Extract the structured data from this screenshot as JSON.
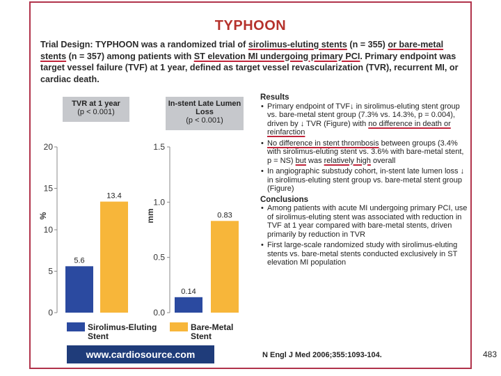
{
  "slide": {
    "title": "TYPHOON",
    "design": {
      "p1": "Trial Design: TYPHOON was a randomized trial of ",
      "u1": "sirolimus-eluting stents",
      "p2": " (n = 355) ",
      "u2": "or bare-metal stents",
      "p3": " (n = 357) among patients with ",
      "u3": "ST elevation MI undergoing primary PCI",
      "p4": ". Primary endpoint was target vessel failure (TVF) at 1 year, defined as target vessel revascularization (TVR), recurrent MI, or cardiac death."
    },
    "results": {
      "heading": "Results",
      "b1": "Primary endpoint of TVF↓ in sirolimus-eluting stent group vs. bare-metal stent group (7.3% vs. 14.3%, p = 0.004), driven by ↓ TVR (Figure) with ",
      "b1u": "no difference in death or reinfarction",
      "b2u": "No difference in stent thrombosis",
      "b2": " between groups (3.4% with sirolimus-eluting stent vs. 3.6% with bare-metal stent, p = NS) ",
      "b2u2": "but",
      "b2m": " was ",
      "b2u3": "relatively high",
      "b2e": " overall",
      "b3": "In angiographic substudy cohort, in-stent late lumen loss ↓ in sirolimus-eluting stent group vs. bare-metal stent group (Figure)"
    },
    "conclusions": {
      "heading": "Conclusions",
      "c1": "Among patients with acute MI undergoing primary PCI, use of sirolimus-eluting stent was associated with reduction in TVF at 1 year compared with bare-metal stents, driven primarily by reduction in TVR",
      "c2": "First large-scale randomized study with sirolimus-eluting stents vs. bare-metal stents conducted exclusively in ST elevation MI population"
    },
    "legend": {
      "series1": "Sirolimus-Eluting Stent",
      "series2": "Bare-Metal Stent"
    },
    "logo_text": "www.cardiosource.com",
    "citation": "N Engl J Med 2006;355:1093-104.",
    "page_number": "483",
    "colors": {
      "blue": "#2b4aa0",
      "orange": "#f7b63a",
      "accent": "#b5322c"
    }
  },
  "chart_data": [
    {
      "type": "bar",
      "title": "TVR at 1 year",
      "subtitle": "(p < 0.001)",
      "ylabel": "%",
      "ylim": [
        0,
        20
      ],
      "yticks": [
        0,
        5,
        10,
        15,
        20
      ],
      "categories": [
        "Sirolimus-Eluting Stent",
        "Bare-Metal Stent"
      ],
      "values": [
        5.6,
        13.4
      ],
      "labels": [
        "5.6",
        "13.4"
      ]
    },
    {
      "type": "bar",
      "title": "In-stent Late Lumen Loss",
      "subtitle": "(p < 0.001)",
      "ylabel": "mm",
      "ylim": [
        0,
        1.5
      ],
      "yticks": [
        0.0,
        0.5,
        1.0,
        1.5
      ],
      "ytick_labels": [
        "0.0",
        "0.5",
        "1.0",
        "1.5"
      ],
      "categories": [
        "Sirolimus-Eluting Stent",
        "Bare-Metal Stent"
      ],
      "values": [
        0.14,
        0.83
      ],
      "labels": [
        "0.14",
        "0.83"
      ]
    }
  ]
}
